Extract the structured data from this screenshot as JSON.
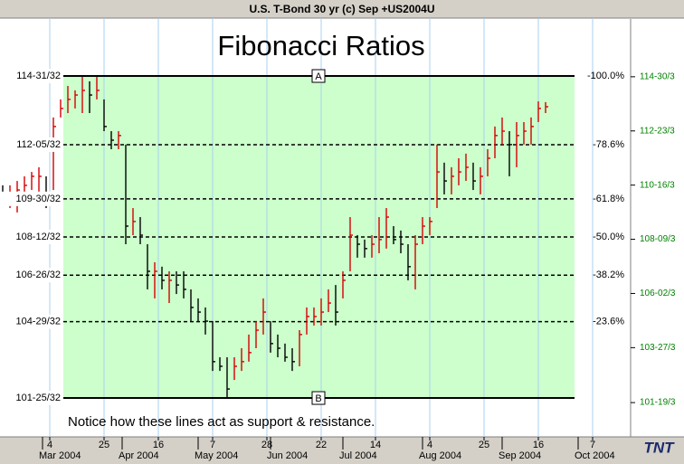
{
  "window_title": "U.S. T-Bond 30 yr (c) Sep +US2004U",
  "chart_data": {
    "type": "ohlc",
    "title": "Fibonacci Ratios",
    "annotation": "Notice how these lines act as support & resistance.",
    "logo": "TNT",
    "x": [
      -13,
      -11,
      -9,
      -7,
      -5,
      -3,
      -1,
      1,
      3,
      5,
      7,
      9,
      11,
      13,
      15,
      17,
      19,
      21,
      23,
      25,
      27,
      29,
      31,
      33,
      35,
      37,
      39,
      41,
      43,
      45,
      47,
      49,
      51,
      53,
      55,
      57,
      59,
      61,
      63,
      65,
      67,
      69,
      71,
      73,
      75,
      77,
      79,
      81,
      83,
      85,
      87,
      89,
      91,
      93,
      95,
      97,
      99,
      101,
      103,
      105,
      107,
      109,
      111,
      113,
      115,
      117,
      119,
      121,
      123,
      125,
      127,
      129,
      131,
      133,
      135,
      137
    ],
    "high": [
      110.49,
      110.49,
      110.67,
      110.86,
      111.04,
      111.23,
      110.86,
      113.27,
      114.01,
      114.56,
      114.38,
      114.93,
      114.75,
      114.93,
      114.01,
      112.71,
      112.71,
      112.16,
      109.56,
      109.19,
      108.08,
      107.34,
      107.16,
      106.97,
      106.97,
      106.97,
      106.23,
      105.86,
      105.49,
      104.93,
      103.45,
      103.45,
      103.45,
      103.82,
      104.38,
      104.93,
      105.86,
      104.93,
      104.38,
      104.01,
      103.82,
      104.56,
      105.49,
      105.49,
      105.86,
      106.23,
      106.41,
      106.97,
      109.19,
      108.45,
      108.27,
      108.45,
      109.19,
      109.56,
      108.82,
      108.64,
      108.08,
      108.45,
      109.19,
      109.19,
      112.16,
      111.42,
      111.23,
      111.6,
      111.79,
      111.42,
      111.23,
      111.97,
      112.9,
      113.27,
      112.71,
      113.08,
      113.08,
      113.27,
      113.93,
      113.9
    ],
    "low": [
      109.75,
      109.56,
      109.38,
      110.12,
      110.3,
      109.93,
      109.56,
      110.3,
      113.27,
      113.45,
      113.64,
      113.45,
      113.45,
      114.01,
      112.71,
      111.97,
      111.97,
      108.08,
      108.45,
      108.08,
      106.23,
      105.86,
      106.23,
      105.67,
      106.04,
      105.86,
      104.93,
      104.93,
      104.38,
      102.89,
      102.89,
      101.78,
      102.52,
      102.89,
      103.27,
      103.82,
      104.38,
      103.64,
      103.45,
      103.27,
      102.89,
      103.08,
      104.38,
      104.75,
      104.75,
      105.3,
      104.75,
      105.86,
      106.97,
      107.53,
      107.53,
      107.53,
      107.71,
      107.9,
      108.08,
      107.71,
      106.6,
      106.23,
      108.08,
      108.45,
      109.56,
      110.12,
      110.12,
      110.49,
      110.67,
      110.3,
      110.12,
      110.86,
      111.6,
      112.16,
      110.86,
      111.23,
      112.16,
      112.16,
      113.08,
      113.45
    ],
    "close": [
      110.12,
      110.12,
      110.3,
      110.49,
      110.86,
      110.86,
      110.12,
      112.9,
      113.64,
      114.01,
      114.19,
      114.38,
      114.19,
      114.38,
      112.9,
      112.34,
      112.53,
      108.82,
      109.01,
      108.45,
      106.97,
      106.97,
      106.6,
      106.6,
      106.41,
      106.23,
      105.49,
      105.3,
      104.93,
      103.27,
      103.08,
      102.15,
      103.08,
      103.27,
      103.64,
      104.56,
      105.3,
      104.01,
      103.82,
      103.45,
      103.27,
      104.38,
      105.12,
      105.12,
      105.3,
      105.67,
      105.3,
      106.6,
      108.45,
      108.08,
      107.9,
      108.08,
      108.27,
      109.19,
      108.27,
      108.08,
      107.16,
      108.08,
      108.82,
      109.01,
      111.04,
      110.67,
      110.86,
      111.04,
      111.23,
      110.67,
      110.86,
      111.6,
      112.53,
      112.71,
      112.16,
      112.53,
      112.71,
      112.9,
      113.64,
      113.71
    ],
    "up_color": "#d40000",
    "down_color": "#000000",
    "xlim": [
      -13.75,
      160.5
    ],
    "xticks": [
      {
        "value": 0,
        "label": "4"
      },
      {
        "value": 15,
        "label": "25"
      },
      {
        "value": 30,
        "label": "16"
      },
      {
        "value": 45,
        "label": "7"
      },
      {
        "value": 60,
        "label": "28"
      },
      {
        "value": 75,
        "label": "22"
      },
      {
        "value": 90,
        "label": "14"
      },
      {
        "value": 105,
        "label": "4"
      },
      {
        "value": 120,
        "label": "25"
      },
      {
        "value": 135,
        "label": "16"
      },
      {
        "value": 150,
        "label": "7"
      }
    ],
    "month_ticks": [
      {
        "value": -2,
        "label": "Mar 2004"
      },
      {
        "value": 20,
        "label": "Apr 2004"
      },
      {
        "value": 41,
        "label": "May 2004"
      },
      {
        "value": 61,
        "label": "Jun 2004"
      },
      {
        "value": 81,
        "label": "Jul 2004"
      },
      {
        "value": 103,
        "label": "Aug 2004"
      },
      {
        "value": 125,
        "label": "Sep 2004"
      },
      {
        "value": 146,
        "label": "Oct 2004"
      }
    ],
    "ylim": [
      100.19,
      117.34
    ],
    "yticks": [
      {
        "value": 114.96875,
        "label": "114-31/32"
      },
      {
        "value": 112.15625,
        "label": "112-05/32"
      },
      {
        "value": 109.9375,
        "label": "109-30/32"
      },
      {
        "value": 108.375,
        "label": "108-12/32"
      },
      {
        "value": 106.8125,
        "label": "106-26/32"
      },
      {
        "value": 104.90625,
        "label": "104-29/32"
      },
      {
        "value": 101.78125,
        "label": "101-25/32"
      }
    ],
    "level_labels": [
      "-100.0%",
      "-78.6%",
      "-61.8%",
      "-50.0%",
      "-38.2%",
      "-23.6%"
    ],
    "markers": [
      "A",
      "B"
    ],
    "y2lim": [
      100.19,
      117.34
    ],
    "y2ticks": [
      {
        "value": 114.9375,
        "label": "114-30/3"
      },
      {
        "value": 112.71875,
        "label": "112-23/3"
      },
      {
        "value": 110.5,
        "label": "110-16/3"
      },
      {
        "value": 108.28125,
        "label": "108-09/3"
      },
      {
        "value": 106.0625,
        "label": "106-02/3"
      },
      {
        "value": 103.84375,
        "label": "103-27/3"
      },
      {
        "value": 101.59375,
        "label": "101-19/3"
      }
    ],
    "grid": true,
    "zone_color": "#ccffcc",
    "grid_color": "#a8d0f0",
    "y2_color": "#008000"
  }
}
